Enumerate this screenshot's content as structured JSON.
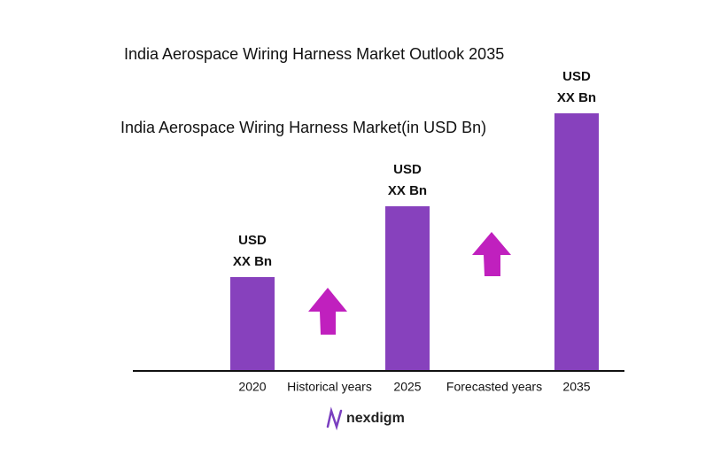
{
  "chart_data": {
    "type": "bar",
    "title": "India Aerospace Wiring Harness  Market Outlook 2035",
    "subtitle": "India Aerospace Wiring Harness  Market(in USD Bn)",
    "categories": [
      "2020",
      "2025",
      "2035"
    ],
    "values": [
      105,
      185,
      290
    ],
    "value_labels": [
      [
        "USD",
        "XX Bn"
      ],
      [
        "USD",
        "XX Bn"
      ],
      [
        "USD",
        "XX Bn"
      ]
    ],
    "color": "#8741bd",
    "ylim": [
      0,
      300
    ],
    "annotations": [
      "Historical years",
      "Forecasted years"
    ],
    "brand": "nexdigm"
  }
}
